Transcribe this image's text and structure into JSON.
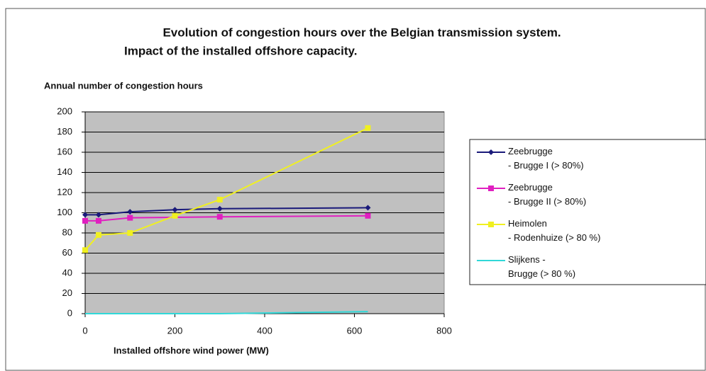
{
  "chart_data": {
    "type": "line",
    "title": "Evolution of congestion hours over the Belgian transmission system.",
    "subtitle": "Impact of the installed offshore capacity.",
    "y_label": "Annual number of congestion hours",
    "x_label": "Installed offshore wind power (MW)",
    "xlim": [
      0,
      800
    ],
    "xticks": [
      0,
      200,
      400,
      600,
      800
    ],
    "ylim": [
      0,
      200
    ],
    "yticks": [
      0,
      20,
      40,
      60,
      80,
      100,
      120,
      140,
      160,
      180,
      200
    ],
    "grid": true,
    "legend": "right",
    "series": [
      {
        "name": "Zeebrugge\n- Brugge I (> 80%)",
        "color": "#1a1a7a",
        "marker": "diamond",
        "x": [
          0,
          30,
          100,
          200,
          300,
          630
        ],
        "values": [
          98,
          98,
          101,
          103,
          104,
          105
        ]
      },
      {
        "name": "Zeebrugge\n- Brugge II (> 80%)",
        "color": "#e020c0",
        "marker": "square",
        "x": [
          0,
          30,
          100,
          300,
          630
        ],
        "values": [
          92,
          92,
          95,
          96,
          97
        ]
      },
      {
        "name": "Heimolen\n- Rodenhuize (> 80 %)",
        "color": "#f0f020",
        "marker": "square",
        "x": [
          0,
          30,
          100,
          200,
          300,
          630
        ],
        "values": [
          63,
          78,
          80,
          97,
          113,
          184
        ]
      },
      {
        "name": "Slijkens -\nBrugge (> 80 %)",
        "color": "#30d8d8",
        "marker": "none",
        "x": [
          0,
          30,
          100,
          200,
          300,
          630
        ],
        "values": [
          0,
          0,
          0,
          0,
          0,
          2
        ]
      }
    ]
  }
}
